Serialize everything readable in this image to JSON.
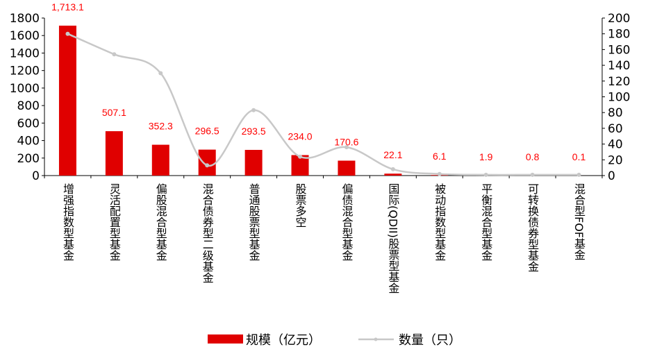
{
  "chart_data": {
    "type": "bar",
    "categories": [
      "增强指数型基金",
      "灵活配置型基金",
      "偏股混合型基金",
      "混合债券型二级基金",
      "普通股票型基金",
      "股票多空",
      "偏债混合型基金",
      "国际(QDII)股票型基金",
      "被动指数型基金",
      "平衡混合型基金",
      "可转换债券型基金",
      "混合型FOF基金"
    ],
    "series": [
      {
        "name": "规模（亿元）",
        "type": "bar",
        "axis": "left",
        "color": "#e00000",
        "values": [
          1713.1,
          507.1,
          352.3,
          296.5,
          293.5,
          234.0,
          170.6,
          22.1,
          6.1,
          1.9,
          0.8,
          0.1
        ],
        "labels": [
          "1,713.1",
          "507.1",
          "352.3",
          "296.5",
          "293.5",
          "234.0",
          "170.6",
          "22.1",
          "6.1",
          "1.9",
          "0.8",
          "0.1"
        ]
      },
      {
        "name": "数量（只）",
        "type": "line",
        "axis": "right",
        "color": "#c8c8c8",
        "values": [
          180,
          154,
          130,
          13,
          83,
          24,
          36,
          8,
          2,
          1,
          1,
          1
        ]
      }
    ],
    "y_left": {
      "ylim": [
        0,
        1800
      ],
      "ticks": [
        "0",
        "200",
        "400",
        "600",
        "800",
        "1000",
        "1200",
        "1400",
        "1600",
        "1800"
      ]
    },
    "y_right": {
      "ylim": [
        0,
        200
      ],
      "ticks": [
        "0",
        "20",
        "40",
        "60",
        "80",
        "100",
        "120",
        "140",
        "160",
        "180",
        "200"
      ]
    },
    "label_color": "#ff0000",
    "grid": false,
    "legend_position": "bottom"
  }
}
